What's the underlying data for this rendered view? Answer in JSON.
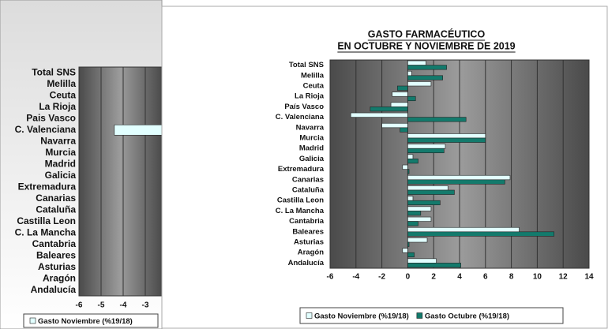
{
  "chart_data": [
    {
      "type": "bar",
      "orientation": "horizontal",
      "categories": [
        "Total SNS",
        "Melilla",
        "Ceuta",
        "La Rioja",
        "Pais Vasco",
        "C. Valenciana",
        "Navarra",
        "Murcia",
        "Madrid",
        "Galicia",
        "Extremadura",
        "Canarias",
        "Cataluña",
        "Castilla Leon",
        "C. La Mancha",
        "Cantabria",
        "Baleares",
        "Asturias",
        "Aragón",
        "Andalucía"
      ],
      "series": [
        {
          "name": "Gasto Noviembre (%19/18)",
          "color": "#e2ffff",
          "values": [
            1.4,
            0.3,
            1.8,
            -1.2,
            -1.3,
            -4.4,
            -2.0,
            6.0,
            2.9,
            0.4,
            -0.4,
            7.9,
            3.1,
            0.4,
            1.8,
            1.8,
            8.6,
            1.5,
            -0.4,
            2.2
          ]
        }
      ],
      "xlim": [
        -6,
        14
      ],
      "xticks": [
        -6,
        -5,
        -4,
        -3
      ],
      "grid": true
    },
    {
      "type": "bar",
      "orientation": "horizontal",
      "title": "GASTO FARMACÉUTICO",
      "subtitle": "EN OCTUBRE Y NOVIEMBRE DE 2019",
      "categories": [
        "Total SNS",
        "Melilla",
        "Ceuta",
        "La Rioja",
        "País Vasco",
        "C. Valenciana",
        "Navarra",
        "Murcia",
        "Madrid",
        "Galicia",
        "Extremadura",
        "Canarias",
        "Cataluña",
        "Castilla Leon",
        "C. La Mancha",
        "Cantabria",
        "Baleares",
        "Asturias",
        "Aragón",
        "Andalucía"
      ],
      "series": [
        {
          "name": "Gasto Noviembre  (%19/18)",
          "color": "#e2ffff",
          "values": [
            1.4,
            0.3,
            1.8,
            -1.2,
            -1.3,
            -4.4,
            -2.0,
            6.0,
            2.9,
            0.4,
            -0.4,
            7.9,
            3.1,
            0.4,
            1.8,
            1.8,
            8.6,
            1.5,
            -0.4,
            2.2
          ]
        },
        {
          "name": "Gasto Octubre (%19/18)",
          "color": "#137a6c",
          "values": [
            3.0,
            2.7,
            -0.8,
            0.6,
            -2.9,
            4.5,
            -0.6,
            6.0,
            2.8,
            0.8,
            0.1,
            7.5,
            3.6,
            2.5,
            1.0,
            0.8,
            11.3,
            0.1,
            0.5,
            4.1
          ]
        }
      ],
      "xlim": [
        -6,
        14
      ],
      "xticks": [
        -6,
        -4,
        -2,
        0,
        2,
        4,
        6,
        8,
        10,
        12,
        14
      ],
      "grid": true
    }
  ]
}
